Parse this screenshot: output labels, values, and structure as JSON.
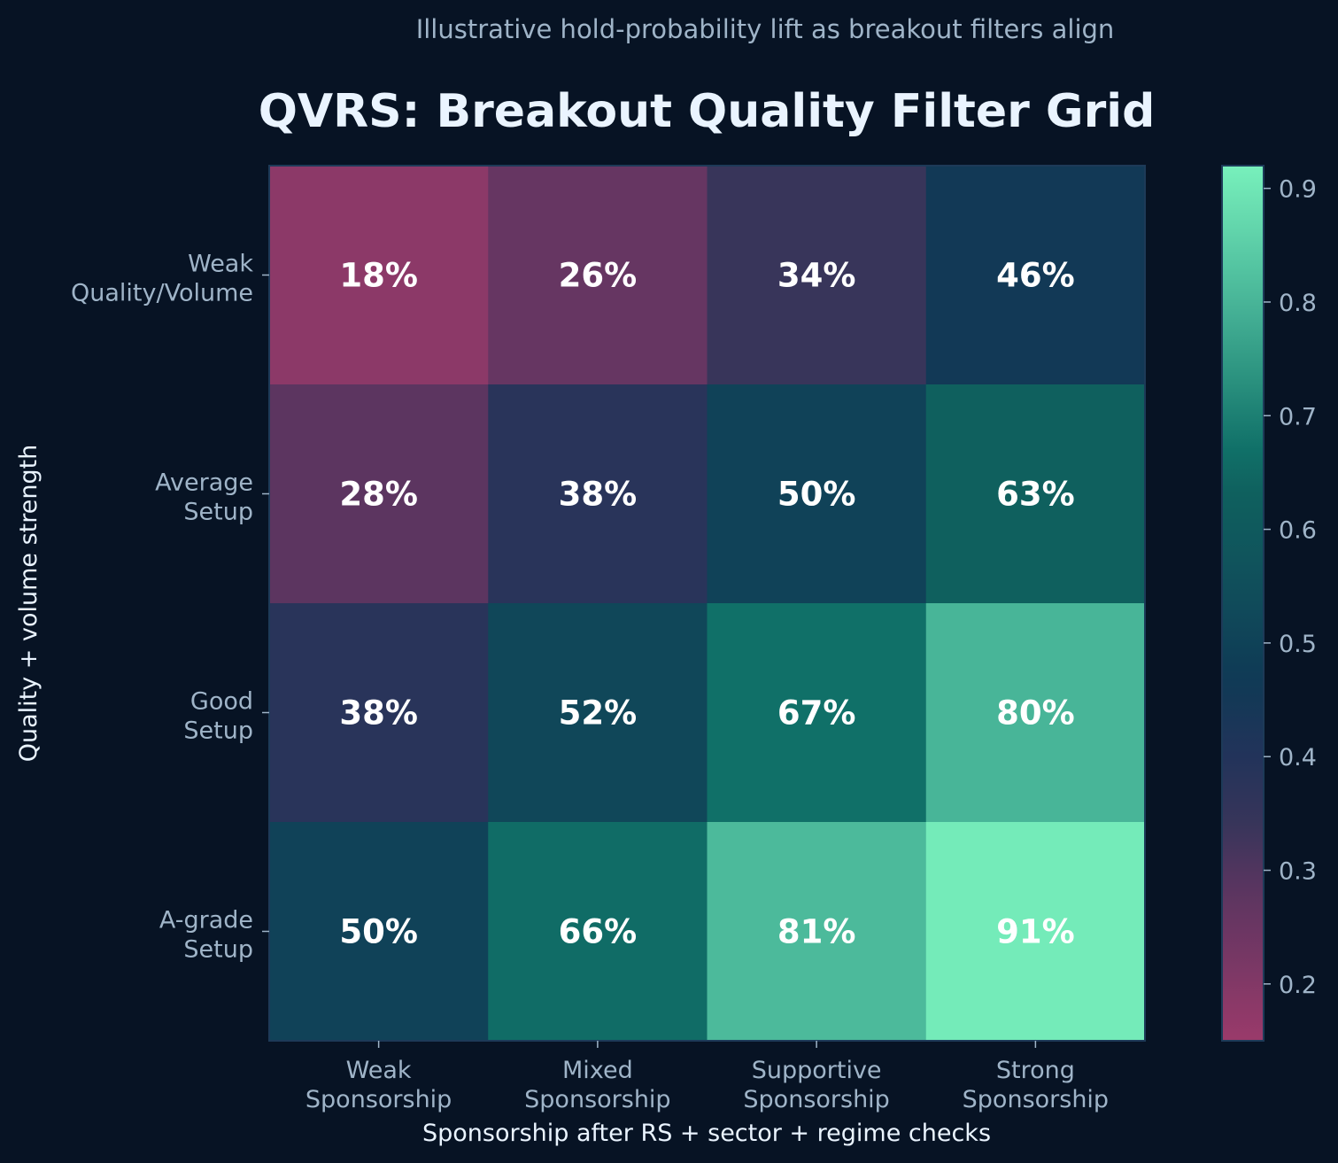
{
  "chart_data": {
    "type": "heatmap",
    "title": "QVRS: Breakout Quality Filter Grid",
    "subtitle": "Illustrative hold-probability lift as breakout filters align",
    "xlabel": "Sponsorship after RS + sector + regime checks",
    "ylabel": "Quality + volume strength",
    "x_categories": [
      [
        "Weak",
        "Sponsorship"
      ],
      [
        "Mixed",
        "Sponsorship"
      ],
      [
        "Supportive",
        "Sponsorship"
      ],
      [
        "Strong",
        "Sponsorship"
      ]
    ],
    "y_categories": [
      [
        "Weak",
        "Quality/Volume"
      ],
      [
        "Average",
        "Setup"
      ],
      [
        "Good",
        "Setup"
      ],
      [
        "A-grade",
        "Setup"
      ]
    ],
    "values": [
      [
        0.18,
        0.26,
        0.34,
        0.46
      ],
      [
        0.28,
        0.38,
        0.5,
        0.63
      ],
      [
        0.38,
        0.52,
        0.67,
        0.8
      ],
      [
        0.5,
        0.66,
        0.81,
        0.91
      ]
    ],
    "labels": [
      [
        "18%",
        "26%",
        "34%",
        "46%"
      ],
      [
        "28%",
        "38%",
        "50%",
        "63%"
      ],
      [
        "38%",
        "52%",
        "67%",
        "80%"
      ],
      [
        "50%",
        "66%",
        "81%",
        "91%"
      ]
    ],
    "colorbar": {
      "range": [
        0.15,
        0.92
      ],
      "ticks": [
        "0.2",
        "0.3",
        "0.4",
        "0.5",
        "0.6",
        "0.7",
        "0.8",
        "0.9"
      ]
    },
    "colors": {
      "background": "#071324",
      "low": "#9a3a6a",
      "mid": "#0f3f55",
      "high": "#78f0bc",
      "text": "#9fb4c8",
      "title": "#eaf4ff"
    }
  }
}
